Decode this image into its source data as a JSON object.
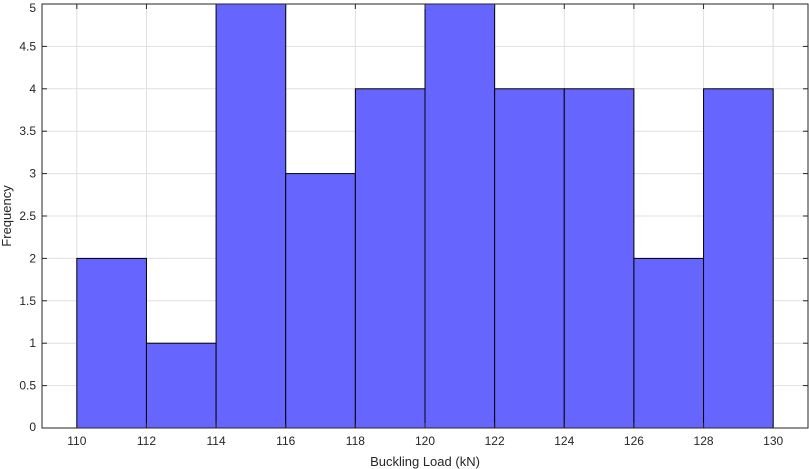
{
  "chart_data": {
    "type": "bar",
    "subtype": "histogram",
    "title": "",
    "xlabel": "Buckling Load (kN)",
    "ylabel": "Frequency",
    "bin_edges": [
      110,
      112,
      114,
      116,
      118,
      120,
      122,
      124,
      126,
      128,
      130
    ],
    "values": [
      2,
      1,
      5,
      3,
      4,
      5,
      4,
      4,
      2,
      4
    ],
    "xlim": [
      109,
      131
    ],
    "ylim": [
      0,
      5
    ],
    "xticks": [
      110,
      112,
      114,
      116,
      118,
      120,
      122,
      124,
      126,
      128,
      130
    ],
    "yticks": [
      0,
      0.5,
      1,
      1.5,
      2,
      2.5,
      3,
      3.5,
      4,
      4.5,
      5
    ],
    "grid": true,
    "colors": {
      "bar_fill": "#6666ff",
      "bar_edge": "#000000",
      "grid": "#dfdfdf",
      "axis": "#262626"
    }
  }
}
